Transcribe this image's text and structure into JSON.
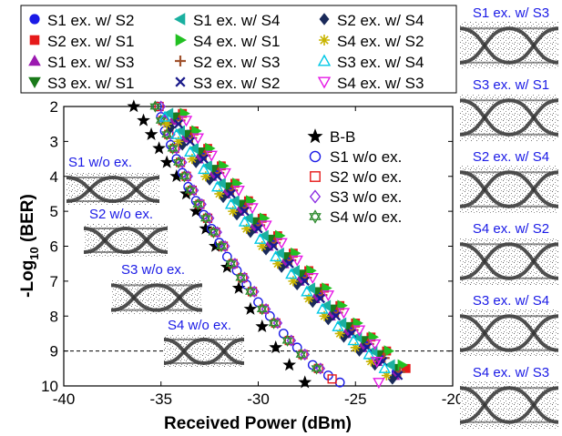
{
  "chart_data": {
    "type": "scatter",
    "xlabel": "Received Power (dBm)",
    "ylabel_main": "-Log",
    "ylabel_sub": "10",
    "ylabel_tail": " (BER)",
    "xlim": [
      -40,
      -20
    ],
    "ylim": [
      2,
      10
    ],
    "y_reversed": true,
    "grid": false,
    "xticks": [
      "-40",
      "-35",
      "-30",
      "-25",
      "-20"
    ],
    "yticks": [
      "2",
      "3",
      "4",
      "5",
      "6",
      "7",
      "8",
      "9",
      "10"
    ],
    "reference_line": {
      "y": 9,
      "style": "dashed"
    },
    "top_legend": [
      "S1 ex. w/ S2",
      "S1 ex. w/ S4",
      "S2 ex. w/ S4",
      "S2 ex. w/ S1",
      "S4 ex. w/ S1",
      "S4 ex. w/ S2",
      "S1 ex. w/ S3",
      "S2 ex. w/ S3",
      "S3 ex. w/ S4",
      "S3 ex. w/ S1",
      "S3 ex. w/ S2",
      "S4 ex. w/ S3"
    ],
    "inner_legend": [
      "B-B",
      "S1 w/o ex.",
      "S2 w/o ex.",
      "S3 w/o ex.",
      "S4 w/o ex."
    ],
    "series": [
      {
        "name": "B-B",
        "marker": "star",
        "color": "#000000",
        "x": [
          -36.4,
          -35.9,
          -35.5,
          -35.1,
          -34.7,
          -34.2,
          -33.7,
          -33.2,
          -32.7,
          -32.2,
          -31.6,
          -31.0,
          -30.4,
          -29.8,
          -29.1,
          -28.4,
          -27.6
        ],
        "y": [
          2.0,
          2.4,
          2.8,
          3.2,
          3.6,
          4.0,
          4.5,
          5.0,
          5.5,
          6.0,
          6.6,
          7.2,
          7.8,
          8.3,
          8.9,
          9.4,
          9.9
        ]
      },
      {
        "name": "S1 w/o ex.",
        "marker": "circle-open",
        "color": "#1a1ae6",
        "x": [
          -35.2,
          -35.0,
          -34.8,
          -34.5,
          -34.2,
          -33.9,
          -33.6,
          -33.2,
          -32.8,
          -32.4,
          -32.0,
          -31.6,
          -31.1,
          -30.6,
          -30.0,
          -29.4,
          -28.7,
          -28.0,
          -27.2,
          -26.4,
          -25.8
        ],
        "y": [
          2.0,
          2.3,
          2.7,
          3.1,
          3.5,
          3.9,
          4.3,
          4.7,
          5.1,
          5.5,
          5.9,
          6.3,
          6.7,
          7.1,
          7.6,
          8.0,
          8.5,
          8.9,
          9.4,
          9.7,
          9.9
        ]
      },
      {
        "name": "S2 w/o ex.",
        "marker": "square-open",
        "color": "#e61a1a",
        "x": [
          -35.1,
          -34.9,
          -34.6,
          -34.3,
          -34.0,
          -33.7,
          -33.4,
          -33.0,
          -32.6,
          -32.2,
          -31.8,
          -31.3,
          -30.8,
          -30.3,
          -29.7,
          -29.1,
          -28.4,
          -27.7,
          -26.9,
          -26.2
        ],
        "y": [
          2.0,
          2.4,
          2.8,
          3.2,
          3.6,
          4.0,
          4.4,
          4.8,
          5.2,
          5.6,
          6.0,
          6.5,
          6.9,
          7.3,
          7.8,
          8.2,
          8.7,
          9.1,
          9.5,
          9.8
        ]
      },
      {
        "name": "S3 w/o ex.",
        "marker": "diamond-open",
        "color": "#8a2be2",
        "x": [
          -35.0,
          -34.8,
          -34.5,
          -34.2,
          -33.9,
          -33.6,
          -33.3,
          -32.9,
          -32.5,
          -32.1,
          -31.7,
          -31.2,
          -30.7,
          -30.2,
          -29.6,
          -29.0,
          -28.3,
          -27.6,
          -26.8
        ],
        "y": [
          2.0,
          2.4,
          2.8,
          3.2,
          3.6,
          4.0,
          4.4,
          4.8,
          5.2,
          5.6,
          6.0,
          6.5,
          6.9,
          7.3,
          7.8,
          8.2,
          8.7,
          9.1,
          9.5
        ]
      },
      {
        "name": "S4 w/o ex.",
        "marker": "hexstar-open",
        "color": "#2e8b2e",
        "x": [
          -35.3,
          -35.0,
          -34.7,
          -34.4,
          -34.1,
          -33.8,
          -33.5,
          -33.1,
          -32.7,
          -32.3,
          -31.9,
          -31.4,
          -30.9,
          -30.4,
          -29.8,
          -29.2,
          -28.5,
          -27.8,
          -27.0
        ],
        "y": [
          2.0,
          2.4,
          2.8,
          3.2,
          3.6,
          4.0,
          4.4,
          4.8,
          5.2,
          5.6,
          6.0,
          6.5,
          6.9,
          7.3,
          7.8,
          8.2,
          8.7,
          9.1,
          9.5
        ]
      },
      {
        "name": "S1 ex. w/ S2",
        "marker": "circle",
        "color": "#1a1ae6",
        "x": [
          -34.2,
          -33.6,
          -32.9,
          -32.2,
          -31.5,
          -30.8,
          -30.1,
          -29.3,
          -28.5,
          -27.7,
          -26.9,
          -26.1,
          -25.3,
          -24.5,
          -23.7,
          -22.9
        ],
        "y": [
          2.3,
          2.8,
          3.4,
          3.9,
          4.4,
          4.9,
          5.4,
          5.9,
          6.4,
          6.9,
          7.4,
          7.9,
          8.4,
          8.8,
          9.2,
          9.6
        ]
      },
      {
        "name": "S2 ex. w/ S1",
        "marker": "square",
        "color": "#e61a1a",
        "x": [
          -33.9,
          -33.3,
          -32.6,
          -31.9,
          -31.2,
          -30.5,
          -29.8,
          -29.0,
          -28.2,
          -27.4,
          -26.6,
          -25.8,
          -25.0,
          -24.2,
          -23.4,
          -22.4
        ],
        "y": [
          2.2,
          2.7,
          3.2,
          3.7,
          4.2,
          4.7,
          5.2,
          5.7,
          6.2,
          6.7,
          7.2,
          7.7,
          8.2,
          8.6,
          9.0,
          9.5
        ]
      },
      {
        "name": "S1 ex. w/ S3",
        "marker": "triangle-up",
        "color": "#9b1ab0",
        "x": [
          -34.4,
          -33.8,
          -33.1,
          -32.4,
          -31.7,
          -31.0,
          -30.3,
          -29.5,
          -28.7,
          -27.9,
          -27.1,
          -26.3,
          -25.5,
          -24.7,
          -23.9,
          -23.0
        ],
        "y": [
          2.4,
          2.9,
          3.5,
          4.0,
          4.5,
          5.0,
          5.5,
          6.0,
          6.5,
          7.0,
          7.5,
          8.0,
          8.5,
          8.9,
          9.3,
          9.7
        ]
      },
      {
        "name": "S3 ex. w/ S1",
        "marker": "triangle-down",
        "color": "#1a7a1a",
        "x": [
          -34.3,
          -33.7,
          -33.0,
          -32.3,
          -31.6,
          -30.9,
          -30.2,
          -29.4,
          -28.6,
          -27.8,
          -27.0,
          -26.2,
          -25.4,
          -24.6,
          -23.8,
          -22.9
        ],
        "y": [
          2.3,
          2.8,
          3.3,
          3.8,
          4.3,
          4.8,
          5.3,
          5.8,
          6.3,
          6.8,
          7.3,
          7.8,
          8.3,
          8.7,
          9.1,
          9.5
        ]
      },
      {
        "name": "S1 ex. w/ S4",
        "marker": "triangle-left",
        "color": "#1ab0a0",
        "x": [
          -34.6,
          -34.0,
          -33.3,
          -32.6,
          -31.9,
          -31.2,
          -30.5,
          -29.7,
          -28.9,
          -28.1,
          -27.3,
          -26.5,
          -25.7,
          -24.9,
          -24.1,
          -23.2
        ],
        "y": [
          2.2,
          2.7,
          3.2,
          3.7,
          4.2,
          4.7,
          5.2,
          5.7,
          6.2,
          6.7,
          7.2,
          7.7,
          8.2,
          8.6,
          9.0,
          9.4
        ]
      },
      {
        "name": "S4 ex. w/ S1",
        "marker": "triangle-right",
        "color": "#22c022",
        "x": [
          -33.8,
          -33.2,
          -32.5,
          -31.8,
          -31.1,
          -30.4,
          -29.7,
          -28.9,
          -28.1,
          -27.3,
          -26.5,
          -25.7,
          -24.9,
          -24.1,
          -23.3,
          -22.6
        ],
        "y": [
          2.2,
          2.7,
          3.2,
          3.7,
          4.2,
          4.7,
          5.2,
          5.7,
          6.2,
          6.7,
          7.2,
          7.7,
          8.2,
          8.6,
          9.0,
          9.4
        ]
      },
      {
        "name": "S2 ex. w/ S3",
        "marker": "plus",
        "color": "#a0522d",
        "x": [
          -34.0,
          -33.4,
          -32.7,
          -32.0,
          -31.3,
          -30.6,
          -29.9,
          -29.1,
          -28.3,
          -27.5,
          -26.7,
          -25.9,
          -25.1,
          -24.3,
          -23.5,
          -22.7
        ],
        "y": [
          2.4,
          2.9,
          3.4,
          3.9,
          4.4,
          4.9,
          5.4,
          5.9,
          6.4,
          6.9,
          7.4,
          7.9,
          8.4,
          8.8,
          9.2,
          9.6
        ]
      },
      {
        "name": "S3 ex. w/ S2",
        "marker": "x",
        "color": "#1a1a8a",
        "x": [
          -34.1,
          -33.5,
          -32.8,
          -32.1,
          -31.4,
          -30.7,
          -30.0,
          -29.2,
          -28.4,
          -27.6,
          -26.8,
          -26.0,
          -25.2,
          -24.4,
          -23.6,
          -22.8
        ],
        "y": [
          2.5,
          3.0,
          3.5,
          4.0,
          4.5,
          5.0,
          5.5,
          6.0,
          6.5,
          7.0,
          7.5,
          8.0,
          8.5,
          8.9,
          9.3,
          9.7
        ]
      },
      {
        "name": "S2 ex. w/ S4",
        "marker": "diamond",
        "color": "#1a2a5a",
        "x": [
          -34.5,
          -33.9,
          -33.2,
          -32.5,
          -31.8,
          -31.1,
          -30.4,
          -29.6,
          -28.8,
          -28.0,
          -27.2,
          -26.4,
          -25.6,
          -24.8,
          -24.0,
          -23.1
        ],
        "y": [
          2.6,
          3.1,
          3.6,
          4.1,
          4.6,
          5.1,
          5.6,
          6.1,
          6.6,
          7.1,
          7.6,
          8.1,
          8.6,
          9.0,
          9.4,
          9.8
        ]
      },
      {
        "name": "S4 ex. w/ S2",
        "marker": "asterisk",
        "color": "#c8b400",
        "x": [
          -34.7,
          -34.1,
          -33.4,
          -32.7,
          -32.0,
          -31.3,
          -30.6,
          -29.8,
          -29.0,
          -28.2,
          -27.4,
          -26.6,
          -25.8,
          -25.0,
          -24.2,
          -23.4
        ],
        "y": [
          2.5,
          3.0,
          3.5,
          4.0,
          4.5,
          5.0,
          5.5,
          6.0,
          6.5,
          7.0,
          7.5,
          8.0,
          8.5,
          8.9,
          9.3,
          9.7
        ]
      },
      {
        "name": "S3 ex. w/ S4",
        "marker": "triangle-up-open",
        "color": "#00c8e6",
        "x": [
          -34.8,
          -34.2,
          -33.5,
          -32.8,
          -32.1,
          -31.4,
          -30.7,
          -29.9,
          -29.1,
          -28.3,
          -27.5,
          -26.7,
          -25.9,
          -25.1,
          -24.3,
          -23.5
        ],
        "y": [
          2.3,
          2.8,
          3.3,
          3.8,
          4.3,
          4.8,
          5.3,
          5.8,
          6.3,
          6.8,
          7.3,
          7.8,
          8.3,
          8.7,
          9.1,
          9.5
        ]
      },
      {
        "name": "S4 ex. w/ S3",
        "marker": "triangle-down-open",
        "color": "#e61ae6",
        "x": [
          -33.7,
          -33.1,
          -32.4,
          -31.7,
          -31.0,
          -30.3,
          -29.6,
          -28.8,
          -28.0,
          -27.2,
          -26.4,
          -25.6,
          -24.8,
          -24.0,
          -23.9,
          -23.8
        ],
        "y": [
          2.4,
          2.9,
          3.4,
          3.9,
          4.4,
          4.9,
          5.4,
          5.9,
          6.4,
          6.9,
          7.4,
          7.9,
          8.4,
          8.8,
          9.3,
          9.9
        ]
      }
    ],
    "eye_insets_left": [
      "S1 w/o ex.",
      "S2 w/o ex.",
      "S3 w/o ex.",
      "S4 w/o ex."
    ],
    "eye_insets_right": [
      "S1 ex. w/ S3",
      "S3 ex. w/ S1",
      "S2 ex. w/ S4",
      "S4 ex. w/ S2",
      "S3 ex. w/ S4",
      "S4 ex. w/ S3"
    ]
  }
}
